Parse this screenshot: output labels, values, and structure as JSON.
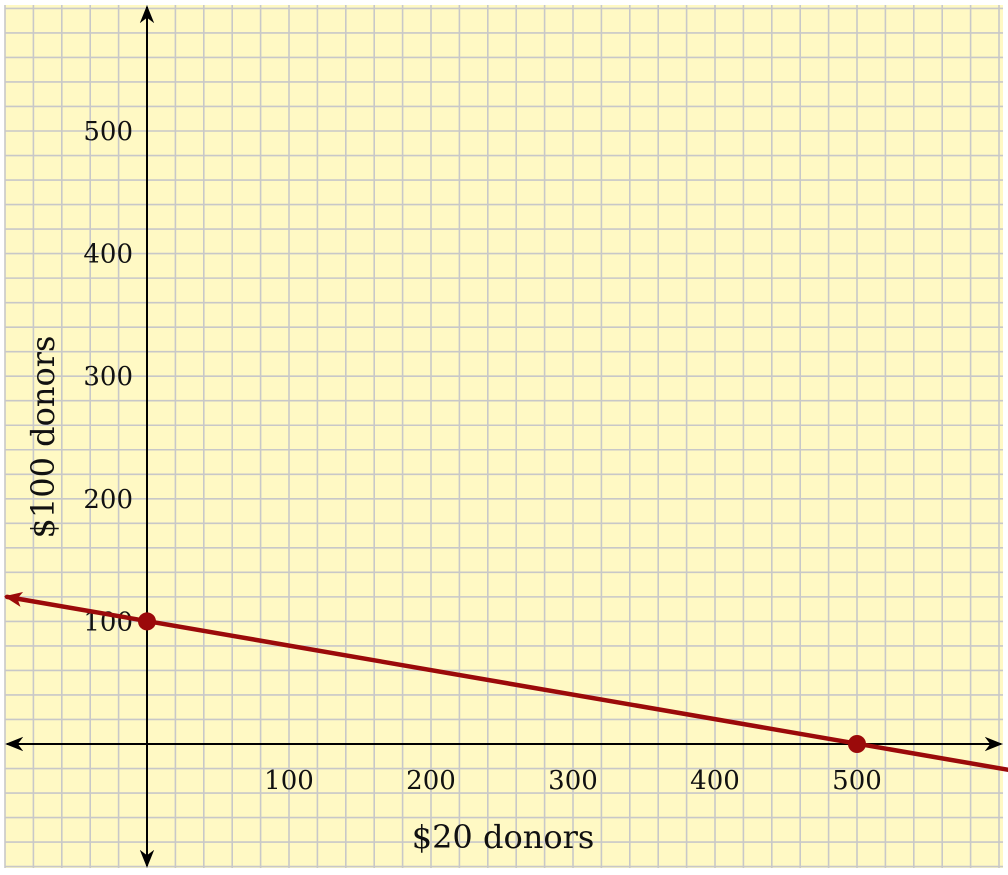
{
  "chart_data": {
    "type": "line",
    "title": "",
    "xlabel": "$20 donors",
    "ylabel": "$100 donors",
    "xlim": [
      -100,
      600
    ],
    "ylim": [
      -100,
      600
    ],
    "xticks": [
      100,
      200,
      300,
      400,
      500
    ],
    "yticks": [
      100,
      200,
      300,
      400,
      500
    ],
    "x_tick_labels": [
      "100",
      "200",
      "300",
      "400",
      "500"
    ],
    "y_tick_labels": [
      "100",
      "200",
      "300",
      "400",
      "500"
    ],
    "grid": true,
    "grid_step": 20,
    "legend": "none",
    "background_color": "#fff9c4",
    "grid_color": "#c8c8c8",
    "series": [
      {
        "x": [
          -100,
          0,
          500,
          600
        ],
        "y": [
          120,
          100,
          0,
          -20
        ],
        "color": "#9b0a0a",
        "arrows": "both-ends"
      }
    ],
    "points": [
      {
        "x": 0,
        "y": 100,
        "color": "#9b0a0a"
      },
      {
        "x": 500,
        "y": 0,
        "color": "#9b0a0a"
      }
    ]
  }
}
